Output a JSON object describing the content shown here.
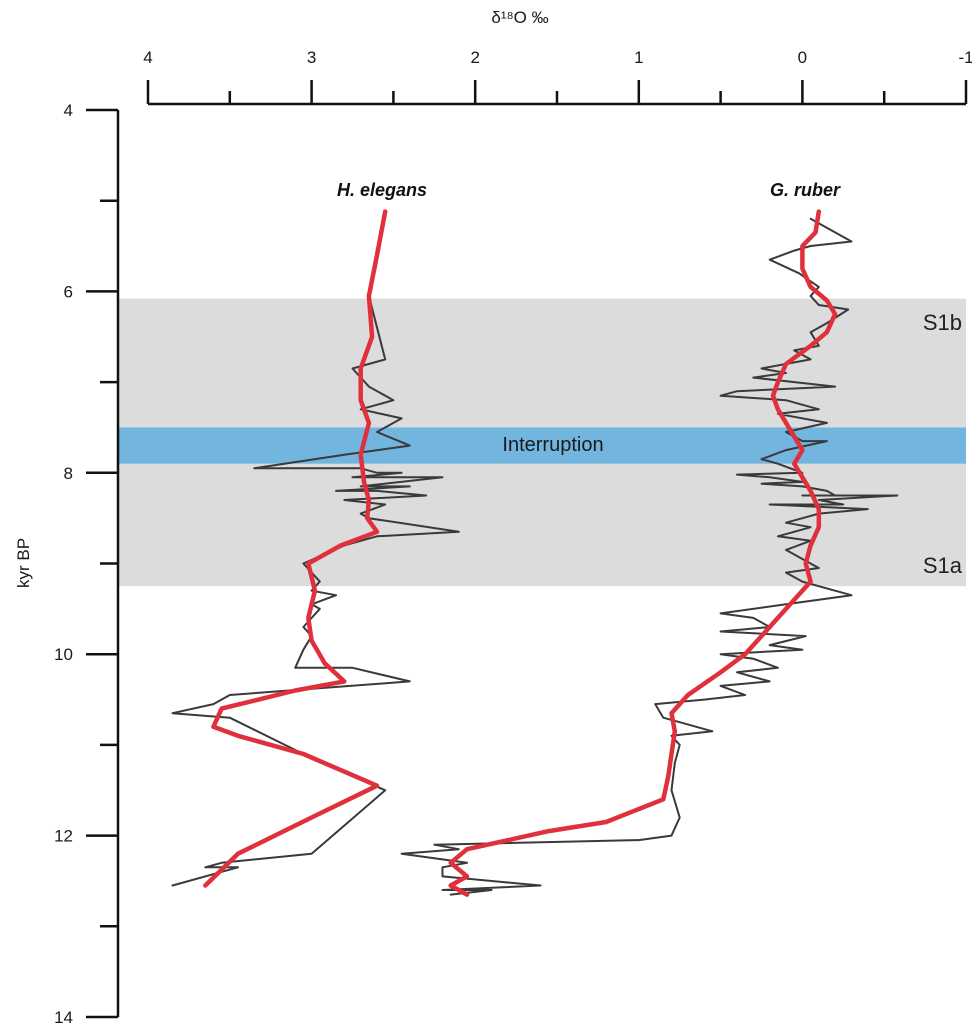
{
  "chart_data": {
    "type": "line",
    "x_axis": {
      "label": "δ¹⁸O ‰",
      "position": "top",
      "reversed": true,
      "range": [
        4,
        -1
      ],
      "ticks": [
        4,
        3,
        2,
        1,
        0,
        -1
      ],
      "tick_labels": [
        "4",
        "3",
        "2",
        "1",
        "0",
        "-1"
      ],
      "minor_ticks": [
        3.5,
        2.5,
        1.5,
        0.5,
        -0.5
      ]
    },
    "y_axis": {
      "label": "kyr BP",
      "position": "left",
      "range": [
        4,
        14
      ],
      "ticks": [
        4,
        6,
        8,
        10,
        12,
        14
      ],
      "tick_labels": [
        "4",
        "6",
        "8",
        "10",
        "12",
        "14"
      ],
      "minor_ticks": [
        5,
        7,
        9,
        11,
        13
      ]
    },
    "grid": false,
    "legend": "none",
    "shaded_zones": [
      {
        "name": "S1b",
        "from": 6.08,
        "to": 7.5,
        "color": "#dcdcdc"
      },
      {
        "name": "S1a",
        "from": 7.9,
        "to": 9.25,
        "color": "#dcdcdc"
      }
    ],
    "bands": [
      {
        "name": "Interruption",
        "from": 7.5,
        "to": 7.9,
        "color": "#72b6e0"
      }
    ],
    "series": [
      {
        "name": "H. elegans",
        "role": "raw",
        "color": "#3a3a3a",
        "points": [
          [
            2.65,
            6.05
          ],
          [
            2.55,
            6.75
          ],
          [
            2.75,
            6.85
          ],
          [
            2.65,
            7.05
          ],
          [
            2.5,
            7.2
          ],
          [
            2.7,
            7.3
          ],
          [
            2.45,
            7.4
          ],
          [
            2.6,
            7.55
          ],
          [
            2.4,
            7.7
          ],
          [
            2.8,
            7.8
          ],
          [
            3.35,
            7.95
          ],
          [
            2.7,
            7.95
          ],
          [
            2.6,
            8.0
          ],
          [
            2.45,
            8.0
          ],
          [
            2.75,
            8.05
          ],
          [
            2.2,
            8.05
          ],
          [
            2.7,
            8.15
          ],
          [
            2.4,
            8.15
          ],
          [
            2.85,
            8.2
          ],
          [
            2.6,
            8.2
          ],
          [
            2.3,
            8.25
          ],
          [
            2.8,
            8.3
          ],
          [
            2.55,
            8.35
          ],
          [
            2.7,
            8.45
          ],
          [
            2.65,
            8.5
          ],
          [
            2.1,
            8.65
          ],
          [
            2.6,
            8.7
          ],
          [
            2.8,
            8.8
          ],
          [
            3.05,
            9.0
          ],
          [
            2.95,
            9.2
          ],
          [
            3.0,
            9.3
          ],
          [
            2.85,
            9.35
          ],
          [
            3.0,
            9.45
          ],
          [
            2.95,
            9.5
          ],
          [
            3.05,
            9.7
          ],
          [
            3.0,
            9.8
          ],
          [
            3.05,
            9.95
          ],
          [
            3.1,
            10.15
          ],
          [
            2.75,
            10.15
          ],
          [
            2.4,
            10.3
          ],
          [
            3.5,
            10.45
          ],
          [
            3.6,
            10.55
          ],
          [
            3.85,
            10.65
          ],
          [
            3.5,
            10.7
          ],
          [
            3.05,
            11.1
          ],
          [
            2.55,
            11.5
          ],
          [
            3.0,
            12.2
          ],
          [
            3.55,
            12.3
          ],
          [
            3.65,
            12.35
          ],
          [
            3.45,
            12.35
          ],
          [
            3.85,
            12.55
          ]
        ]
      },
      {
        "name": "H. elegans",
        "role": "smoothed",
        "color": "#e0303c",
        "points": [
          [
            2.55,
            5.12
          ],
          [
            2.6,
            5.6
          ],
          [
            2.65,
            6.05
          ],
          [
            2.63,
            6.5
          ],
          [
            2.7,
            6.85
          ],
          [
            2.7,
            7.2
          ],
          [
            2.65,
            7.45
          ],
          [
            2.7,
            7.8
          ],
          [
            2.68,
            8.1
          ],
          [
            2.65,
            8.3
          ],
          [
            2.66,
            8.5
          ],
          [
            2.6,
            8.65
          ],
          [
            2.82,
            8.8
          ],
          [
            3.02,
            9.0
          ],
          [
            2.98,
            9.3
          ],
          [
            3.02,
            9.6
          ],
          [
            3.0,
            9.85
          ],
          [
            2.92,
            10.1
          ],
          [
            2.8,
            10.3
          ],
          [
            3.1,
            10.4
          ],
          [
            3.55,
            10.6
          ],
          [
            3.6,
            10.8
          ],
          [
            3.45,
            10.9
          ],
          [
            3.05,
            11.1
          ],
          [
            2.6,
            11.45
          ],
          [
            3.0,
            11.8
          ],
          [
            3.45,
            12.2
          ],
          [
            3.65,
            12.55
          ]
        ]
      },
      {
        "name": "G. ruber",
        "role": "raw",
        "color": "#3a3a3a",
        "points": [
          [
            -0.05,
            5.2
          ],
          [
            -0.3,
            5.45
          ],
          [
            -0.05,
            5.5
          ],
          [
            0.05,
            5.55
          ],
          [
            0.2,
            5.65
          ],
          [
            0.02,
            5.8
          ],
          [
            -0.1,
            5.95
          ],
          [
            -0.05,
            6.05
          ],
          [
            -0.1,
            6.15
          ],
          [
            -0.28,
            6.2
          ],
          [
            -0.15,
            6.35
          ],
          [
            -0.05,
            6.45
          ],
          [
            -0.1,
            6.6
          ],
          [
            0.05,
            6.65
          ],
          [
            -0.05,
            6.75
          ],
          [
            0.25,
            6.85
          ],
          [
            0.1,
            6.9
          ],
          [
            0.3,
            6.95
          ],
          [
            -0.2,
            7.05
          ],
          [
            0.4,
            7.1
          ],
          [
            0.5,
            7.15
          ],
          [
            0.1,
            7.2
          ],
          [
            -0.1,
            7.3
          ],
          [
            0.15,
            7.35
          ],
          [
            -0.15,
            7.45
          ],
          [
            0.1,
            7.55
          ],
          [
            0.0,
            7.65
          ],
          [
            -0.15,
            7.65
          ],
          [
            0.1,
            7.75
          ],
          [
            0.25,
            7.85
          ],
          [
            0.15,
            7.9
          ],
          [
            0.0,
            8.0
          ],
          [
            0.4,
            8.02
          ],
          [
            0.2,
            8.05
          ],
          [
            0.0,
            8.1
          ],
          [
            0.25,
            8.12
          ],
          [
            0.0,
            8.15
          ],
          [
            -0.15,
            8.2
          ],
          [
            -0.2,
            8.25
          ],
          [
            0.0,
            8.25
          ],
          [
            -0.58,
            8.25
          ],
          [
            -0.1,
            8.3
          ],
          [
            -0.25,
            8.35
          ],
          [
            0.2,
            8.35
          ],
          [
            -0.4,
            8.4
          ],
          [
            -0.1,
            8.45
          ],
          [
            0.0,
            8.5
          ],
          [
            0.1,
            8.55
          ],
          [
            -0.05,
            8.6
          ],
          [
            0.05,
            8.65
          ],
          [
            0.15,
            8.7
          ],
          [
            -0.05,
            8.75
          ],
          [
            0.1,
            8.85
          ],
          [
            0.0,
            8.95
          ],
          [
            -0.1,
            9.05
          ],
          [
            0.1,
            9.1
          ],
          [
            0.0,
            9.2
          ],
          [
            -0.2,
            9.3
          ],
          [
            -0.3,
            9.35
          ],
          [
            0.1,
            9.45
          ],
          [
            0.5,
            9.55
          ],
          [
            0.3,
            9.6
          ],
          [
            0.2,
            9.7
          ],
          [
            0.5,
            9.75
          ],
          [
            -0.02,
            9.8
          ],
          [
            0.2,
            9.9
          ],
          [
            0.0,
            9.95
          ],
          [
            0.5,
            10.0
          ],
          [
            0.3,
            10.05
          ],
          [
            0.15,
            10.15
          ],
          [
            0.4,
            10.2
          ],
          [
            0.2,
            10.3
          ],
          [
            0.5,
            10.35
          ],
          [
            0.35,
            10.45
          ],
          [
            0.6,
            10.5
          ],
          [
            0.9,
            10.55
          ],
          [
            0.85,
            10.7
          ],
          [
            0.75,
            10.75
          ],
          [
            0.55,
            10.85
          ],
          [
            0.8,
            10.9
          ],
          [
            0.75,
            11.0
          ],
          [
            0.78,
            11.2
          ],
          [
            0.8,
            11.5
          ],
          [
            0.75,
            11.8
          ],
          [
            0.8,
            12.0
          ],
          [
            1.0,
            12.05
          ],
          [
            2.25,
            12.1
          ],
          [
            2.1,
            12.15
          ],
          [
            2.45,
            12.2
          ],
          [
            2.05,
            12.3
          ],
          [
            2.2,
            12.35
          ],
          [
            2.2,
            12.45
          ],
          [
            1.6,
            12.55
          ],
          [
            2.2,
            12.6
          ],
          [
            1.9,
            12.6
          ],
          [
            2.15,
            12.65
          ]
        ]
      },
      {
        "name": "G. ruber",
        "role": "smoothed",
        "color": "#e0303c",
        "points": [
          [
            -0.1,
            5.12
          ],
          [
            -0.08,
            5.35
          ],
          [
            0.0,
            5.5
          ],
          [
            0.0,
            5.75
          ],
          [
            -0.05,
            5.95
          ],
          [
            -0.15,
            6.1
          ],
          [
            -0.2,
            6.25
          ],
          [
            -0.15,
            6.45
          ],
          [
            -0.05,
            6.6
          ],
          [
            0.1,
            6.8
          ],
          [
            0.15,
            7.0
          ],
          [
            0.18,
            7.15
          ],
          [
            0.15,
            7.3
          ],
          [
            0.1,
            7.45
          ],
          [
            0.05,
            7.6
          ],
          [
            0.0,
            7.75
          ],
          [
            0.05,
            7.9
          ],
          [
            0.0,
            8.05
          ],
          [
            -0.05,
            8.2
          ],
          [
            -0.1,
            8.4
          ],
          [
            -0.1,
            8.6
          ],
          [
            -0.05,
            8.8
          ],
          [
            -0.02,
            9.0
          ],
          [
            -0.05,
            9.2
          ],
          [
            0.05,
            9.4
          ],
          [
            0.15,
            9.6
          ],
          [
            0.25,
            9.8
          ],
          [
            0.35,
            10.0
          ],
          [
            0.5,
            10.2
          ],
          [
            0.7,
            10.45
          ],
          [
            0.8,
            10.65
          ],
          [
            0.78,
            10.85
          ],
          [
            0.8,
            11.1
          ],
          [
            0.82,
            11.35
          ],
          [
            0.85,
            11.6
          ],
          [
            1.2,
            11.85
          ],
          [
            1.55,
            11.95
          ],
          [
            2.05,
            12.15
          ],
          [
            2.15,
            12.3
          ],
          [
            2.05,
            12.45
          ],
          [
            2.15,
            12.55
          ],
          [
            2.05,
            12.65
          ]
        ]
      }
    ],
    "annotations": [
      {
        "text": "H. elegans",
        "kind": "series-label"
      },
      {
        "text": "G. ruber",
        "kind": "series-label"
      },
      {
        "text": "S1b",
        "kind": "zone-label"
      },
      {
        "text": "S1a",
        "kind": "zone-label"
      },
      {
        "text": "Interruption",
        "kind": "band-label"
      }
    ]
  }
}
